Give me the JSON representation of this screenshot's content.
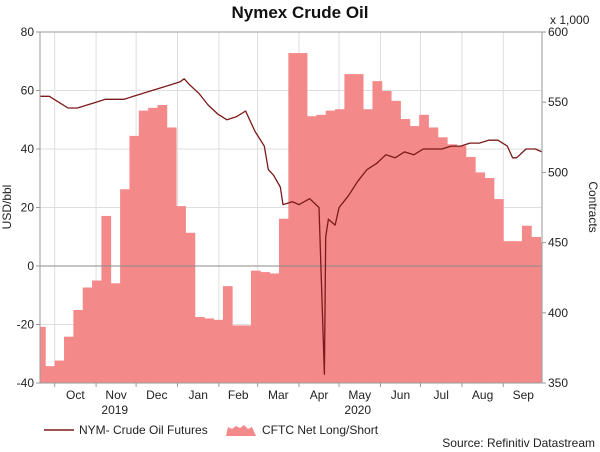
{
  "chart_data": {
    "type": "bar+line",
    "title": "Nymex Crude Oil",
    "y_left_label": "USD/bbl",
    "y_right_label": "Contracts",
    "y_right_unit": "x 1,000",
    "y_left_ticks": [
      "80",
      "60",
      "40",
      "20",
      "0",
      "-20",
      "-40"
    ],
    "y_right_ticks": [
      "600",
      "550",
      "500",
      "450",
      "400",
      "350"
    ],
    "y_left_lim": [
      -40,
      80
    ],
    "y_right_lim": [
      350,
      600
    ],
    "x_month_labels": [
      "Oct",
      "Nov",
      "Dec",
      "Jan",
      "Feb",
      "Mar",
      "Apr",
      "May",
      "Jun",
      "Jul",
      "Aug",
      "Sep"
    ],
    "x_year_labels": [
      "2019",
      "2020"
    ],
    "x_range": [
      "2019-09-20",
      "2020-09-30"
    ],
    "grid": true,
    "legend_position": "bottom",
    "source": "Source: Refinitiv Datastream",
    "series": [
      {
        "name": "NYM- Crude Oil Futures",
        "kind": "line",
        "axis": "left",
        "color": "#7a1a1a",
        "x": [
          "2019-09-20",
          "2019-09-27",
          "2019-10-04",
          "2019-10-11",
          "2019-10-18",
          "2019-10-25",
          "2019-11-01",
          "2019-11-08",
          "2019-11-15",
          "2019-11-22",
          "2019-11-29",
          "2019-12-06",
          "2019-12-13",
          "2019-12-20",
          "2019-12-27",
          "2020-01-03",
          "2020-01-06",
          "2020-01-10",
          "2020-01-17",
          "2020-01-24",
          "2020-01-31",
          "2020-02-07",
          "2020-02-14",
          "2020-02-21",
          "2020-02-28",
          "2020-03-06",
          "2020-03-09",
          "2020-03-13",
          "2020-03-18",
          "2020-03-20",
          "2020-03-27",
          "2020-04-01",
          "2020-04-09",
          "2020-04-16",
          "2020-04-20",
          "2020-04-21",
          "2020-04-23",
          "2020-04-28",
          "2020-05-01",
          "2020-05-08",
          "2020-05-15",
          "2020-05-22",
          "2020-05-29",
          "2020-06-05",
          "2020-06-12",
          "2020-06-19",
          "2020-06-26",
          "2020-07-03",
          "2020-07-10",
          "2020-07-17",
          "2020-07-24",
          "2020-07-31",
          "2020-08-07",
          "2020-08-14",
          "2020-08-21",
          "2020-08-28",
          "2020-09-04",
          "2020-09-08",
          "2020-09-11",
          "2020-09-18",
          "2020-09-25",
          "2020-09-30"
        ],
        "values": [
          58,
          58,
          56,
          54,
          54,
          55,
          56,
          57,
          57,
          57,
          58,
          59,
          60,
          61,
          62,
          63,
          64,
          62,
          59,
          55,
          52,
          50,
          51,
          53,
          46,
          41,
          33,
          31,
          27,
          21,
          22,
          21,
          23,
          20,
          -37,
          10,
          16,
          14,
          20,
          24,
          29,
          33,
          35,
          38,
          37,
          39,
          38,
          40,
          40,
          40,
          41,
          41,
          42,
          42,
          43,
          43,
          41,
          37,
          37,
          40,
          40,
          39
        ]
      },
      {
        "name": "CFTC Net Long/Short",
        "kind": "area",
        "axis": "right",
        "color": "#f4898a",
        "x": [
          "2019-09-17",
          "2019-09-24",
          "2019-10-01",
          "2019-10-08",
          "2019-10-15",
          "2019-10-22",
          "2019-10-29",
          "2019-11-05",
          "2019-11-12",
          "2019-11-19",
          "2019-11-26",
          "2019-12-03",
          "2019-12-10",
          "2019-12-17",
          "2019-12-24",
          "2019-12-31",
          "2020-01-07",
          "2020-01-14",
          "2020-01-21",
          "2020-01-28",
          "2020-02-04",
          "2020-02-11",
          "2020-02-18",
          "2020-02-25",
          "2020-03-03",
          "2020-03-10",
          "2020-03-17",
          "2020-03-24",
          "2020-03-31",
          "2020-04-07",
          "2020-04-14",
          "2020-04-21",
          "2020-04-28",
          "2020-05-05",
          "2020-05-12",
          "2020-05-19",
          "2020-05-26",
          "2020-06-02",
          "2020-06-09",
          "2020-06-16",
          "2020-06-23",
          "2020-06-30",
          "2020-07-07",
          "2020-07-14",
          "2020-07-21",
          "2020-07-28",
          "2020-08-04",
          "2020-08-11",
          "2020-08-18",
          "2020-08-25",
          "2020-09-01",
          "2020-09-08",
          "2020-09-15",
          "2020-09-22",
          "2020-09-29"
        ],
        "values": [
          390,
          362,
          366,
          383,
          402,
          418,
          423,
          469,
          421,
          488,
          526,
          544,
          546,
          548,
          532,
          476,
          457,
          397,
          396,
          395,
          419,
          391,
          391,
          430,
          429,
          428,
          467,
          585,
          585,
          540,
          541,
          544,
          545,
          570,
          570,
          545,
          565,
          558,
          551,
          538,
          533,
          541,
          532,
          525,
          520,
          519,
          511,
          500,
          496,
          481,
          451,
          451,
          462,
          454,
          450
        ]
      }
    ]
  }
}
